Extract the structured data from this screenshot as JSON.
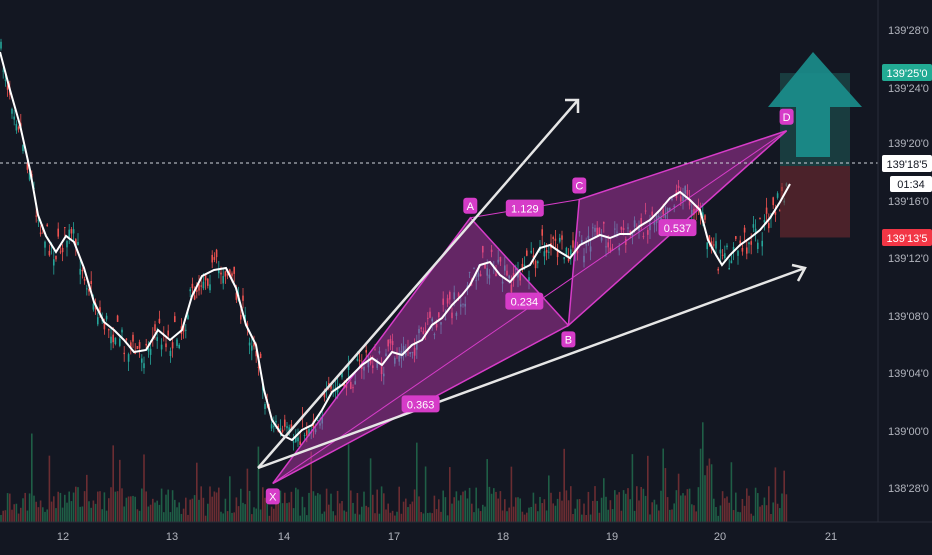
{
  "chart_data": {
    "type": "candlestick",
    "title": "",
    "xlabel": "",
    "ylabel": "",
    "x_ticks": [
      "12",
      "13",
      "14",
      "17",
      "18",
      "19",
      "20",
      "21"
    ],
    "y_ticks": [
      "139'28'0",
      "139'24'0",
      "139'20'0",
      "139'16'0",
      "139'12'0",
      "139'08'0",
      "139'04'0",
      "139'00'0",
      "138'28'0"
    ],
    "ylim": [
      138.85,
      139.88
    ],
    "price_tags": {
      "target": "139'25'0",
      "last": "139'18'5",
      "countdown": "01:34",
      "stop": "139'13'5"
    },
    "pattern": {
      "type": "XABCD harmonic (bullish)",
      "points": {
        "X": {
          "label": "X",
          "date": "13.9",
          "price": 138.885
        },
        "A": {
          "label": "A",
          "date": "17.7",
          "price": 139.465
        },
        "B": {
          "label": "B",
          "date": "18.6",
          "price": 139.23
        },
        "C": {
          "label": "C",
          "date": "18.7",
          "price": 139.505
        },
        "D": {
          "label": "D",
          "date": "20.6",
          "price": 139.655
        }
      },
      "ratios": [
        {
          "between": "X-B",
          "value": "0.363"
        },
        {
          "between": "A-C",
          "value": "1.129"
        },
        {
          "between": "X-A-B",
          "value": "0.234"
        },
        {
          "between": "B-D",
          "value": "0.537"
        }
      ]
    },
    "moving_average": "white line",
    "position": {
      "direction": "long",
      "entry": 139.578,
      "target": 139.781,
      "stop": 139.422
    },
    "grid": false,
    "legend": "none",
    "colors": {
      "background": "#131722",
      "bull": "#26a69a",
      "bear": "#ef5350",
      "pattern": "#d63cc8",
      "target_tag": "#22ab94",
      "stop_tag": "#f23645",
      "arrow": "#1b8f8d"
    }
  }
}
